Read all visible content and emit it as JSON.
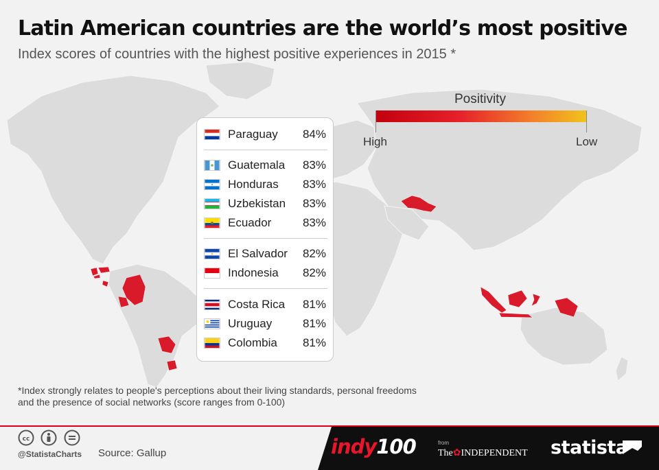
{
  "header": {
    "title": "Latin American countries are the world’s most positive",
    "subtitle": "Index scores of countries with the highest positive experiences in 2015 *"
  },
  "legend": {
    "title": "Positivity",
    "high_label": "High",
    "low_label": "Low",
    "colors": [
      "#c3000e",
      "#e6212a",
      "#f3822a",
      "#f2c31c"
    ]
  },
  "chart_data": {
    "type": "table",
    "groups": [
      [
        {
          "country": "Paraguay",
          "value": "84%"
        }
      ],
      [
        {
          "country": "Guatemala",
          "value": "83%"
        },
        {
          "country": "Honduras",
          "value": "83%"
        },
        {
          "country": "Uzbekistan",
          "value": "83%"
        },
        {
          "country": "Ecuador",
          "value": "83%"
        }
      ],
      [
        {
          "country": "El Salvador",
          "value": "82%"
        },
        {
          "country": "Indonesia",
          "value": "82%"
        }
      ],
      [
        {
          "country": "Costa Rica",
          "value": "81%"
        },
        {
          "country": "Uruguay",
          "value": "81%"
        },
        {
          "country": "Colombia",
          "value": "81%"
        }
      ]
    ],
    "highlight_color": "#d91a2a",
    "land_color": "#dcdcdc"
  },
  "footnote": {
    "line1": "*Index strongly relates to people's perceptions about their living standards, personal freedoms",
    "line2": "and the presence of social networks (score ranges from 0-100)"
  },
  "footer": {
    "handle": "@StatistaCharts",
    "source": "Source: Gallup",
    "indy_text": "indy",
    "indy_number": "100",
    "from_label": "from",
    "the_label": "The",
    "independent_label": "INDEPENDENT",
    "statista_label": "statista",
    "license_icons": [
      "cc-icon",
      "attribution-icon",
      "no-derivatives-icon"
    ]
  }
}
